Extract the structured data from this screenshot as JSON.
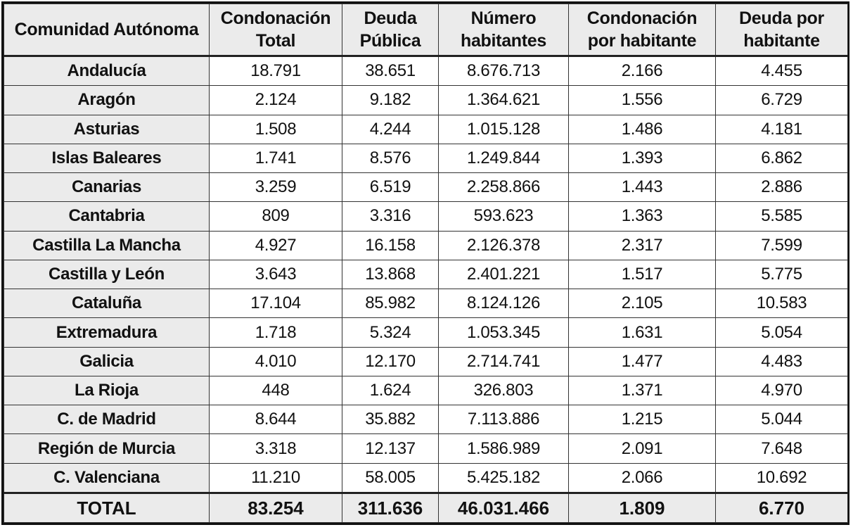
{
  "table": {
    "headers": [
      "Comunidad Autónoma",
      "Condonación Total",
      "Deuda Pública",
      "Número habitantes",
      "Condonación por habitante",
      "Deuda por habitante"
    ],
    "rows": [
      [
        "Andalucía",
        "18.791",
        "38.651",
        "8.676.713",
        "2.166",
        "4.455"
      ],
      [
        "Aragón",
        "2.124",
        "9.182",
        "1.364.621",
        "1.556",
        "6.729"
      ],
      [
        "Asturias",
        "1.508",
        "4.244",
        "1.015.128",
        "1.486",
        "4.181"
      ],
      [
        "Islas Baleares",
        "1.741",
        "8.576",
        "1.249.844",
        "1.393",
        "6.862"
      ],
      [
        "Canarias",
        "3.259",
        "6.519",
        "2.258.866",
        "1.443",
        "2.886"
      ],
      [
        "Cantabria",
        "809",
        "3.316",
        "593.623",
        "1.363",
        "5.585"
      ],
      [
        "Castilla La Mancha",
        "4.927",
        "16.158",
        "2.126.378",
        "2.317",
        "7.599"
      ],
      [
        "Castilla y León",
        "3.643",
        "13.868",
        "2.401.221",
        "1.517",
        "5.775"
      ],
      [
        "Cataluña",
        "17.104",
        "85.982",
        "8.124.126",
        "2.105",
        "10.583"
      ],
      [
        "Extremadura",
        "1.718",
        "5.324",
        "1.053.345",
        "1.631",
        "5.054"
      ],
      [
        "Galicia",
        "4.010",
        "12.170",
        "2.714.741",
        "1.477",
        "4.483"
      ],
      [
        "La Rioja",
        "448",
        "1.624",
        "326.803",
        "1.371",
        "4.970"
      ],
      [
        "C. de Madrid",
        "8.644",
        "35.882",
        "7.113.886",
        "1.215",
        "5.044"
      ],
      [
        "Región de Murcia",
        "3.318",
        "12.137",
        "1.586.989",
        "2.091",
        "7.648"
      ],
      [
        "C. Valenciana",
        "11.210",
        "58.005",
        "5.425.182",
        "2.066",
        "10.692"
      ]
    ],
    "total": [
      "TOTAL",
      "83.254",
      "311.636",
      "46.031.466",
      "1.809",
      "6.770"
    ]
  },
  "colors": {
    "header_bg": "#ebebeb",
    "name_col_bg": "#ebebeb",
    "cell_bg": "#ffffff",
    "border": "#111111"
  }
}
